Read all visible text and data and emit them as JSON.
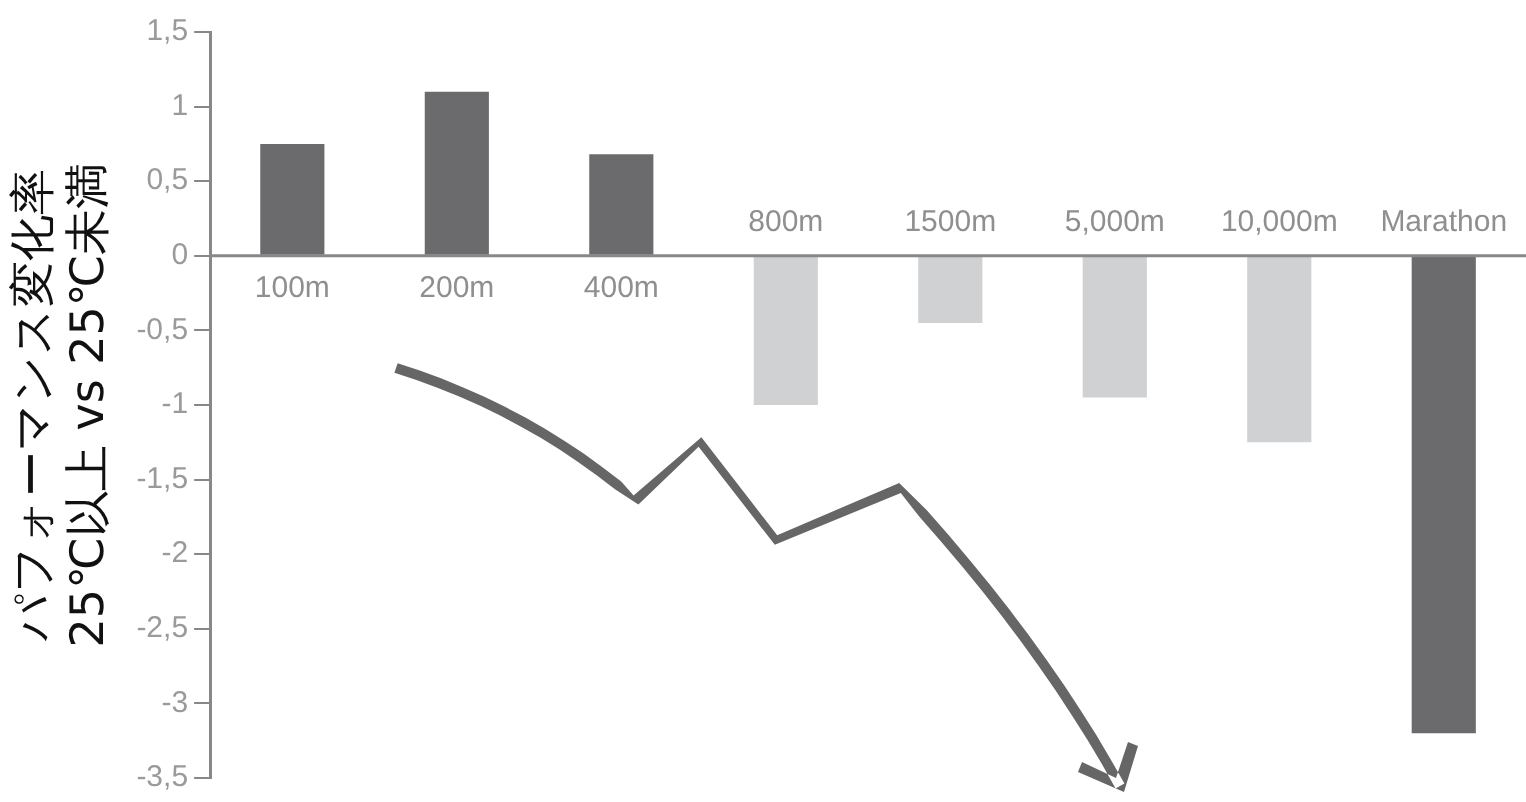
{
  "chart_data": {
    "type": "bar",
    "ylabel": "パフォーマンス変化率\n25℃以上 vs 25℃未満",
    "categories": [
      "100m",
      "200m",
      "400m",
      "800m",
      "1500m",
      "5,000m",
      "10,000m",
      "Marathon"
    ],
    "values": [
      0.75,
      1.1,
      0.68,
      -1.0,
      -0.45,
      -0.95,
      -1.25,
      -3.2
    ],
    "colors": [
      "#6b6b6d",
      "#6b6b6d",
      "#6b6b6d",
      "#d0d1d3",
      "#d0d1d3",
      "#d0d1d3",
      "#d0d1d3",
      "#6b6b6d"
    ],
    "ylim": [
      -3.5,
      1.5
    ],
    "yticks": [
      {
        "value": 1.5,
        "label": "1,5"
      },
      1,
      {
        "value": 0.5,
        "label": "0,5"
      },
      0,
      {
        "value": -0.5,
        "label": "-0,5"
      },
      -1,
      {
        "value": -1.5,
        "label": "-1,5"
      },
      -2,
      {
        "value": -2.5,
        "label": "-2,5"
      },
      -3,
      {
        "value": -3.5,
        "label": "-3,5"
      }
    ],
    "grid": false,
    "legend": false
  }
}
